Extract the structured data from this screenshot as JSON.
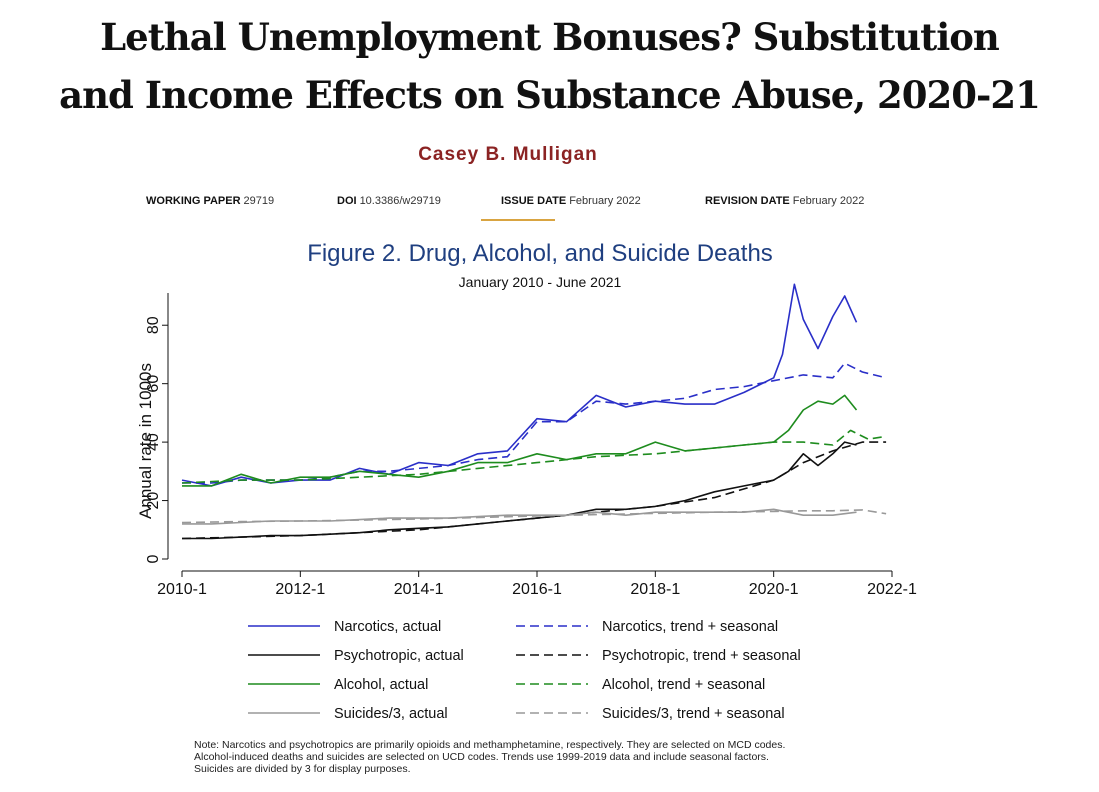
{
  "page": {
    "title_line1": "Lethal Unemployment Bonuses? Substitution",
    "title_line2": "and Income Effects on Substance Abuse, 2020-21",
    "author": "Casey B. Mulligan",
    "meta": [
      {
        "label": "WORKING PAPER",
        "value": "29719"
      },
      {
        "label": "DOI",
        "value": "10.3386/w29719"
      },
      {
        "label": "ISSUE DATE",
        "value": "February 2022"
      },
      {
        "label": "REVISION DATE",
        "value": "February 2022"
      }
    ],
    "note_lines": [
      "Note: Narcotics and psychotropics are primarily opioids and methamphetamine, respectively.  They are selected on MCD codes.",
      "Alcohol-induced deaths and suicides are selected on UCD codes.  Trends use 1999-2019 data and include seasonal factors.",
      "Suicides are divided by 3 for display purposes."
    ]
  },
  "chart_data": {
    "type": "line",
    "title": "Figure 2.  Drug, Alcohol, and Suicide Deaths",
    "subtitle": "January 2010 - June 2021",
    "xlabel": "",
    "ylabel": "Annual rate in 1000s",
    "xlim": [
      2010.0,
      2022.0
    ],
    "ylim": [
      0,
      90
    ],
    "x_ticks": [
      "2010-1",
      "2012-1",
      "2014-1",
      "2016-1",
      "2018-1",
      "2020-1",
      "2022-1"
    ],
    "y_ticks": [
      0,
      20,
      40,
      60,
      80
    ],
    "colors": {
      "title": "#1f3f80",
      "narcotics": "#2a2fc8",
      "psychotropic": "#111111",
      "alcohol": "#1e8c1e",
      "suicides": "#999999"
    },
    "legend_placement": "bottom",
    "series": [
      {
        "name": "Narcotics, actual",
        "style": "solid",
        "color": "#2a2fc8",
        "x": [
          2010.0,
          2010.5,
          2011.0,
          2011.5,
          2012.0,
          2012.5,
          2013.0,
          2013.5,
          2014.0,
          2014.5,
          2015.0,
          2015.5,
          2016.0,
          2016.5,
          2017.0,
          2017.5,
          2018.0,
          2018.5,
          2019.0,
          2019.5,
          2020.0,
          2020.15,
          2020.35,
          2020.5,
          2020.75,
          2021.0,
          2021.2,
          2021.4
        ],
        "y": [
          27,
          25,
          28,
          26,
          27,
          27,
          31,
          29,
          33,
          32,
          36,
          37,
          48,
          47,
          56,
          52,
          54,
          53,
          53,
          57,
          62,
          70,
          94,
          82,
          72,
          83,
          90,
          81
        ]
      },
      {
        "name": "Narcotics, trend + seasonal",
        "style": "dashed",
        "color": "#2a2fc8",
        "x": [
          2010.0,
          2010.5,
          2011.0,
          2011.5,
          2012.0,
          2012.5,
          2013.0,
          2013.5,
          2014.0,
          2014.5,
          2015.0,
          2015.5,
          2016.0,
          2016.5,
          2017.0,
          2017.5,
          2018.0,
          2018.5,
          2019.0,
          2019.5,
          2020.0,
          2020.5,
          2021.0,
          2021.2,
          2021.5,
          2021.9
        ],
        "y": [
          26,
          26,
          27,
          27,
          27,
          28,
          30,
          30,
          31,
          32,
          34,
          35,
          47,
          47,
          54,
          53,
          54,
          55,
          58,
          59,
          61,
          63,
          62,
          67,
          64,
          62
        ]
      },
      {
        "name": "Psychotropic, actual",
        "style": "solid",
        "color": "#111111",
        "x": [
          2010.0,
          2010.5,
          2011.0,
          2011.5,
          2012.0,
          2012.5,
          2013.0,
          2013.5,
          2014.0,
          2014.5,
          2015.0,
          2015.5,
          2016.0,
          2016.5,
          2017.0,
          2017.5,
          2018.0,
          2018.5,
          2019.0,
          2019.5,
          2020.0,
          2020.25,
          2020.5,
          2020.75,
          2021.0,
          2021.2,
          2021.4
        ],
        "y": [
          7,
          7,
          7.5,
          8,
          8,
          8.5,
          9,
          10,
          10.5,
          11,
          12,
          13,
          14,
          15,
          17,
          17,
          18,
          20,
          23,
          25,
          27,
          30,
          36,
          32,
          36,
          40,
          39
        ]
      },
      {
        "name": "Psychotropic, trend + seasonal",
        "style": "dashed",
        "color": "#111111",
        "x": [
          2010.0,
          2011.0,
          2012.0,
          2013.0,
          2014.0,
          2015.0,
          2016.0,
          2017.0,
          2018.0,
          2019.0,
          2019.5,
          2020.0,
          2020.5,
          2021.0,
          2021.5,
          2021.9
        ],
        "y": [
          7,
          7.5,
          8,
          9,
          10,
          12,
          14,
          16,
          18,
          21,
          24,
          27,
          33,
          37,
          40,
          40
        ]
      },
      {
        "name": "Alcohol, actual",
        "style": "solid",
        "color": "#1e8c1e",
        "x": [
          2010.0,
          2010.5,
          2011.0,
          2011.5,
          2012.0,
          2012.5,
          2013.0,
          2013.5,
          2014.0,
          2014.5,
          2015.0,
          2015.5,
          2016.0,
          2016.5,
          2017.0,
          2017.5,
          2018.0,
          2018.5,
          2019.0,
          2019.5,
          2020.0,
          2020.25,
          2020.5,
          2020.75,
          2021.0,
          2021.2,
          2021.4
        ],
        "y": [
          25,
          25,
          29,
          26,
          28,
          28,
          30,
          29,
          28,
          30,
          33,
          33,
          36,
          34,
          36,
          36,
          40,
          37,
          38,
          39,
          40,
          44,
          51,
          54,
          53,
          56,
          51
        ]
      },
      {
        "name": "Alcohol, trend + seasonal",
        "style": "dashed",
        "color": "#1e8c1e",
        "x": [
          2010.0,
          2011.0,
          2012.0,
          2013.0,
          2014.0,
          2015.0,
          2016.0,
          2017.0,
          2018.0,
          2019.0,
          2019.5,
          2020.0,
          2020.5,
          2021.0,
          2021.3,
          2021.6,
          2021.9
        ],
        "y": [
          26,
          27,
          27,
          28,
          29,
          31,
          33,
          35,
          36,
          38,
          39,
          40,
          40,
          39,
          44,
          41,
          42
        ]
      },
      {
        "name": "Suicides/3, actual",
        "style": "solid",
        "color": "#999999",
        "x": [
          2010.0,
          2010.5,
          2011.0,
          2011.5,
          2012.0,
          2012.5,
          2013.0,
          2013.5,
          2014.0,
          2014.5,
          2015.0,
          2015.5,
          2016.0,
          2016.5,
          2017.0,
          2017.5,
          2018.0,
          2018.5,
          2019.0,
          2019.5,
          2020.0,
          2020.5,
          2021.0,
          2021.4
        ],
        "y": [
          12,
          12,
          12.5,
          13,
          13,
          13,
          13.5,
          14,
          14,
          14,
          14.5,
          15,
          15,
          15,
          16,
          15,
          16,
          16,
          16,
          16,
          17,
          15,
          15,
          16
        ]
      },
      {
        "name": "Suicides/3, trend + seasonal",
        "style": "dashed",
        "color": "#999999",
        "x": [
          2010.0,
          2011.0,
          2012.0,
          2013.0,
          2014.0,
          2015.0,
          2016.0,
          2017.0,
          2018.0,
          2019.0,
          2020.0,
          2020.5,
          2021.0,
          2021.5,
          2021.9
        ],
        "y": [
          12.5,
          12.8,
          13,
          13.3,
          13.7,
          14.2,
          14.7,
          15.2,
          15.6,
          16,
          16.3,
          16.5,
          16.5,
          16.8,
          15.5
        ]
      }
    ]
  }
}
